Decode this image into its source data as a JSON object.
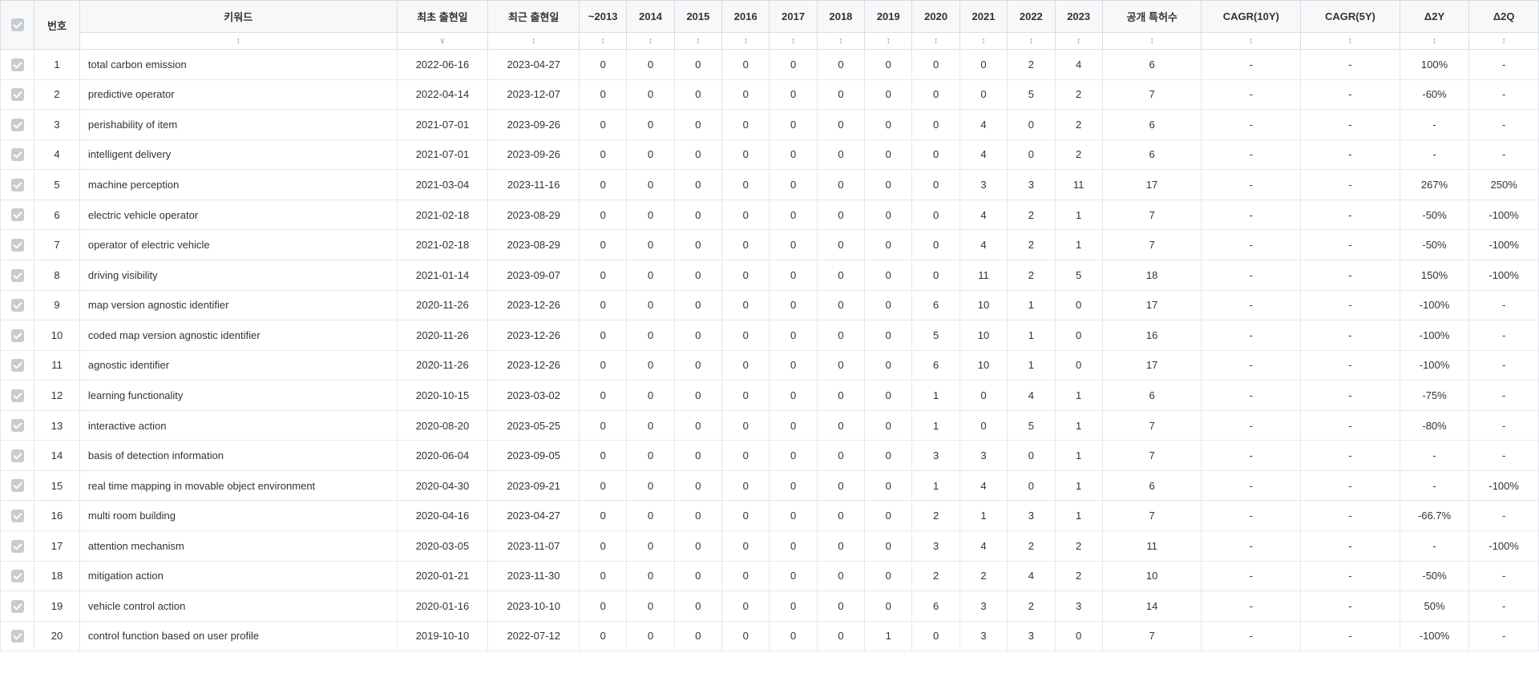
{
  "columns": {
    "number": "번호",
    "keyword": "키워드",
    "first_date": "최초 출현일",
    "last_date": "최근 출현일",
    "y_pre2013": "~2013",
    "y2014": "2014",
    "y2015": "2015",
    "y2016": "2016",
    "y2017": "2017",
    "y2018": "2018",
    "y2019": "2019",
    "y2020": "2020",
    "y2021": "2021",
    "y2022": "2022",
    "y2023": "2023",
    "total": "공개 특허수",
    "cagr10": "CAGR(10Y)",
    "cagr5": "CAGR(5Y)",
    "d2y": "Δ2Y",
    "d2q": "Δ2Q"
  },
  "dash": "-",
  "rows": [
    {
      "n": 1,
      "kw": "total carbon emission",
      "first": "2022-06-16",
      "last": "2023-04-27",
      "y": [
        0,
        0,
        0,
        0,
        0,
        0,
        0,
        0,
        0,
        2,
        4
      ],
      "t": 6,
      "c10": "-",
      "c5": "-",
      "d2y": "100%",
      "d2q": "-"
    },
    {
      "n": 2,
      "kw": "predictive operator",
      "first": "2022-04-14",
      "last": "2023-12-07",
      "y": [
        0,
        0,
        0,
        0,
        0,
        0,
        0,
        0,
        0,
        5,
        2
      ],
      "t": 7,
      "c10": "-",
      "c5": "-",
      "d2y": "-60%",
      "d2q": "-"
    },
    {
      "n": 3,
      "kw": "perishability of item",
      "first": "2021-07-01",
      "last": "2023-09-26",
      "y": [
        0,
        0,
        0,
        0,
        0,
        0,
        0,
        0,
        4,
        0,
        2
      ],
      "t": 6,
      "c10": "-",
      "c5": "-",
      "d2y": "-",
      "d2q": "-"
    },
    {
      "n": 4,
      "kw": "intelligent delivery",
      "first": "2021-07-01",
      "last": "2023-09-26",
      "y": [
        0,
        0,
        0,
        0,
        0,
        0,
        0,
        0,
        4,
        0,
        2
      ],
      "t": 6,
      "c10": "-",
      "c5": "-",
      "d2y": "-",
      "d2q": "-"
    },
    {
      "n": 5,
      "kw": "machine perception",
      "first": "2021-03-04",
      "last": "2023-11-16",
      "y": [
        0,
        0,
        0,
        0,
        0,
        0,
        0,
        0,
        3,
        3,
        11
      ],
      "t": 17,
      "c10": "-",
      "c5": "-",
      "d2y": "267%",
      "d2q": "250%"
    },
    {
      "n": 6,
      "kw": "electric vehicle operator",
      "first": "2021-02-18",
      "last": "2023-08-29",
      "y": [
        0,
        0,
        0,
        0,
        0,
        0,
        0,
        0,
        4,
        2,
        1
      ],
      "t": 7,
      "c10": "-",
      "c5": "-",
      "d2y": "-50%",
      "d2q": "-100%"
    },
    {
      "n": 7,
      "kw": "operator of electric vehicle",
      "first": "2021-02-18",
      "last": "2023-08-29",
      "y": [
        0,
        0,
        0,
        0,
        0,
        0,
        0,
        0,
        4,
        2,
        1
      ],
      "t": 7,
      "c10": "-",
      "c5": "-",
      "d2y": "-50%",
      "d2q": "-100%"
    },
    {
      "n": 8,
      "kw": "driving visibility",
      "first": "2021-01-14",
      "last": "2023-09-07",
      "y": [
        0,
        0,
        0,
        0,
        0,
        0,
        0,
        0,
        11,
        2,
        5
      ],
      "t": 18,
      "c10": "-",
      "c5": "-",
      "d2y": "150%",
      "d2q": "-100%"
    },
    {
      "n": 9,
      "kw": "map version agnostic identifier",
      "first": "2020-11-26",
      "last": "2023-12-26",
      "y": [
        0,
        0,
        0,
        0,
        0,
        0,
        0,
        6,
        10,
        1,
        0
      ],
      "t": 17,
      "c10": "-",
      "c5": "-",
      "d2y": "-100%",
      "d2q": "-"
    },
    {
      "n": 10,
      "kw": "coded map version agnostic identifier",
      "first": "2020-11-26",
      "last": "2023-12-26",
      "y": [
        0,
        0,
        0,
        0,
        0,
        0,
        0,
        5,
        10,
        1,
        0
      ],
      "t": 16,
      "c10": "-",
      "c5": "-",
      "d2y": "-100%",
      "d2q": "-"
    },
    {
      "n": 11,
      "kw": "agnostic identifier",
      "first": "2020-11-26",
      "last": "2023-12-26",
      "y": [
        0,
        0,
        0,
        0,
        0,
        0,
        0,
        6,
        10,
        1,
        0
      ],
      "t": 17,
      "c10": "-",
      "c5": "-",
      "d2y": "-100%",
      "d2q": "-"
    },
    {
      "n": 12,
      "kw": "learning functionality",
      "first": "2020-10-15",
      "last": "2023-03-02",
      "y": [
        0,
        0,
        0,
        0,
        0,
        0,
        0,
        1,
        0,
        4,
        1
      ],
      "t": 6,
      "c10": "-",
      "c5": "-",
      "d2y": "-75%",
      "d2q": "-"
    },
    {
      "n": 13,
      "kw": "interactive action",
      "first": "2020-08-20",
      "last": "2023-05-25",
      "y": [
        0,
        0,
        0,
        0,
        0,
        0,
        0,
        1,
        0,
        5,
        1
      ],
      "t": 7,
      "c10": "-",
      "c5": "-",
      "d2y": "-80%",
      "d2q": "-"
    },
    {
      "n": 14,
      "kw": "basis of detection information",
      "first": "2020-06-04",
      "last": "2023-09-05",
      "y": [
        0,
        0,
        0,
        0,
        0,
        0,
        0,
        3,
        3,
        0,
        1
      ],
      "t": 7,
      "c10": "-",
      "c5": "-",
      "d2y": "-",
      "d2q": "-"
    },
    {
      "n": 15,
      "kw": "real time mapping in movable object environment",
      "first": "2020-04-30",
      "last": "2023-09-21",
      "y": [
        0,
        0,
        0,
        0,
        0,
        0,
        0,
        1,
        4,
        0,
        1
      ],
      "t": 6,
      "c10": "-",
      "c5": "-",
      "d2y": "-",
      "d2q": "-100%"
    },
    {
      "n": 16,
      "kw": "multi room building",
      "first": "2020-04-16",
      "last": "2023-04-27",
      "y": [
        0,
        0,
        0,
        0,
        0,
        0,
        0,
        2,
        1,
        3,
        1
      ],
      "t": 7,
      "c10": "-",
      "c5": "-",
      "d2y": "-66.7%",
      "d2q": "-"
    },
    {
      "n": 17,
      "kw": "attention mechanism",
      "first": "2020-03-05",
      "last": "2023-11-07",
      "y": [
        0,
        0,
        0,
        0,
        0,
        0,
        0,
        3,
        4,
        2,
        2
      ],
      "t": 11,
      "c10": "-",
      "c5": "-",
      "d2y": "-",
      "d2q": "-100%"
    },
    {
      "n": 18,
      "kw": "mitigation action",
      "first": "2020-01-21",
      "last": "2023-11-30",
      "y": [
        0,
        0,
        0,
        0,
        0,
        0,
        0,
        2,
        2,
        4,
        2
      ],
      "t": 10,
      "c10": "-",
      "c5": "-",
      "d2y": "-50%",
      "d2q": "-"
    },
    {
      "n": 19,
      "kw": "vehicle control action",
      "first": "2020-01-16",
      "last": "2023-10-10",
      "y": [
        0,
        0,
        0,
        0,
        0,
        0,
        0,
        6,
        3,
        2,
        3
      ],
      "t": 14,
      "c10": "-",
      "c5": "-",
      "d2y": "50%",
      "d2q": "-"
    },
    {
      "n": 20,
      "kw": "control function based on user profile",
      "first": "2019-10-10",
      "last": "2022-07-12",
      "y": [
        0,
        0,
        0,
        0,
        0,
        0,
        1,
        0,
        3,
        3,
        0
      ],
      "t": 7,
      "c10": "-",
      "c5": "-",
      "d2y": "-100%",
      "d2q": "-"
    }
  ]
}
